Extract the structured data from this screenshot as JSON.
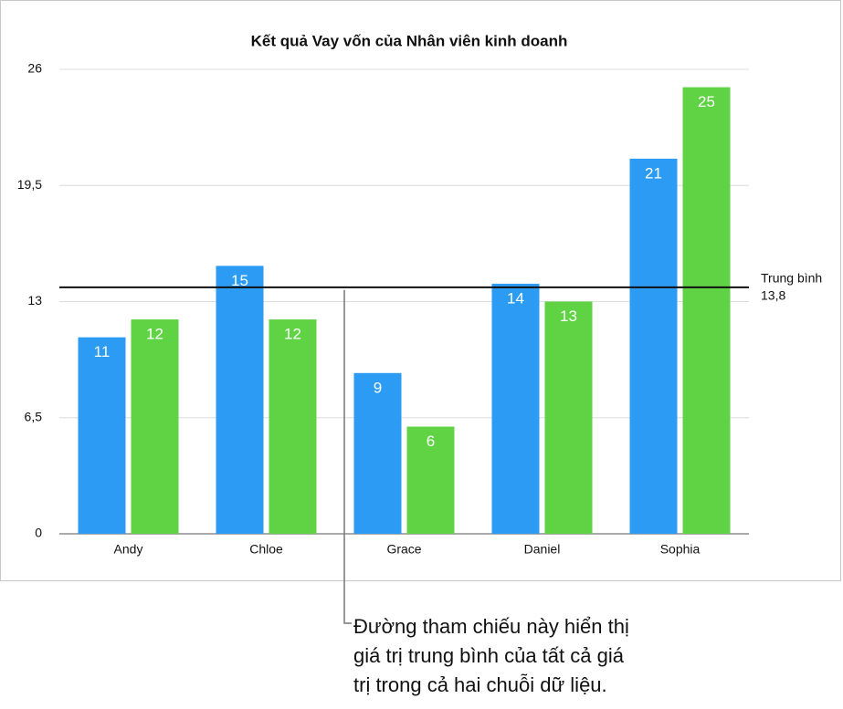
{
  "chart_data": {
    "type": "bar",
    "title": "Kết quả Vay vốn của Nhân viên kinh doanh",
    "categories": [
      "Andy",
      "Chloe",
      "Grace",
      "Daniel",
      "Sophia"
    ],
    "series": [
      {
        "color": "#2b9bf4",
        "values": [
          11,
          15,
          9,
          14,
          21
        ]
      },
      {
        "color": "#5fd343",
        "values": [
          12,
          12,
          6,
          13,
          25
        ]
      }
    ],
    "ylim": [
      0,
      26
    ],
    "yticks": [
      0,
      {
        "value": 6.5,
        "label": "6,5"
      },
      13,
      {
        "value": 19.5,
        "label": "19,5"
      },
      26
    ],
    "grid": true,
    "reference_line": {
      "label": "Trung bình",
      "value": 13.8,
      "value_label": "13,8"
    },
    "annotation": [
      "Đường tham chiếu này hiển thị",
      "giá trị trung bình của tất cả giá",
      "trị trong cả hai chuỗi dữ liệu."
    ]
  }
}
